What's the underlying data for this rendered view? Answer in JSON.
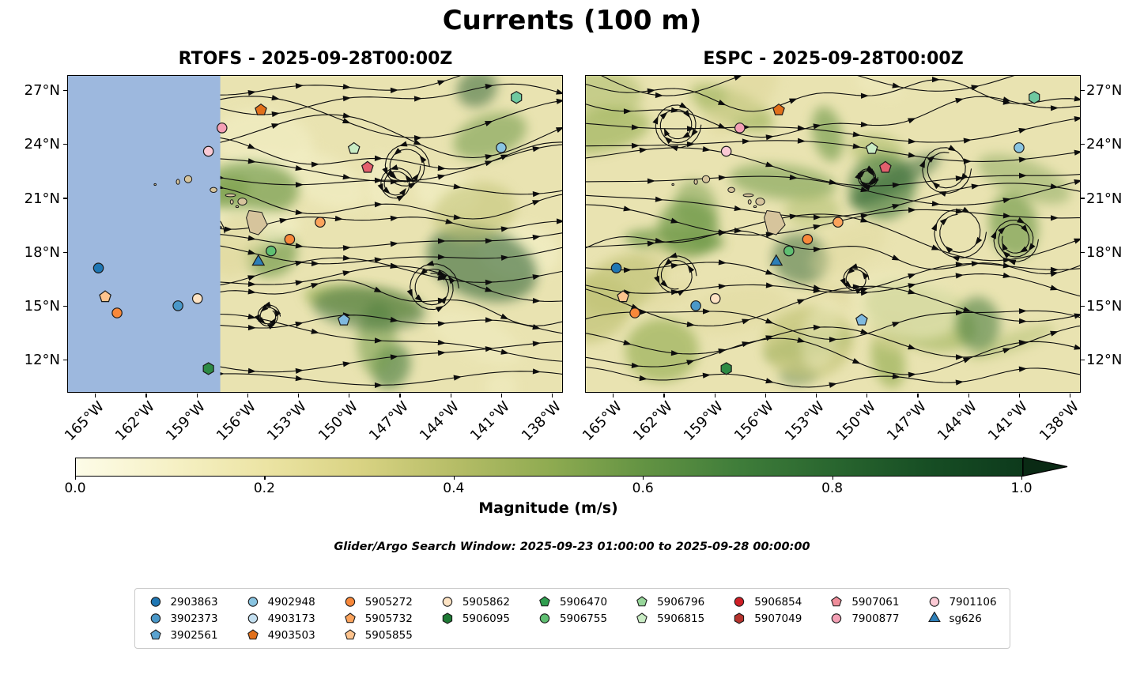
{
  "figure": {
    "title": "Currents (100 m)",
    "panels": [
      {
        "id": "rtofs",
        "title": "RTOFS - 2025-09-28T00:00Z"
      },
      {
        "id": "espc",
        "title": "ESPC - 2025-09-28T00:00Z"
      }
    ],
    "search_window": "Glider/Argo Search Window: 2025-09-23 01:00:00 to 2025-09-28 00:00:00",
    "colorbar": {
      "label": "Magnitude (m/s)",
      "tick_labels": [
        "0.0",
        "0.2",
        "0.4",
        "0.6",
        "0.8",
        "1.0"
      ],
      "gradient": [
        "#fdfce8",
        "#f6f1c6",
        "#ece4a4",
        "#d9d383",
        "#b6bd67",
        "#8fab51",
        "#639343",
        "#3f7d3a",
        "#29662f",
        "#174e24",
        "#0d3a1c"
      ],
      "arrow_color": "#0a2a14"
    },
    "colors": {
      "mask": "#9db8de",
      "field_base": "#e9e3b1",
      "island": "#d6c49c",
      "streamline": "#0d0d0d",
      "green_palette": [
        "#f2eec4",
        "#dfd89c",
        "#c2c478",
        "#9db35c",
        "#6f9a48",
        "#43793a",
        "#2a6030"
      ]
    },
    "axis": {
      "lat_tick_labels": [
        "27°N",
        "24°N",
        "21°N",
        "18°N",
        "15°N",
        "12°N"
      ],
      "lon_tick_labels": [
        "165°W",
        "162°W",
        "159°W",
        "156°W",
        "153°W",
        "150°W",
        "147°W",
        "144°W",
        "141°W",
        "138°W"
      ]
    },
    "legend_columns": [
      [
        {
          "id": "2903863",
          "shape": "circle",
          "color": "#1f77b4"
        },
        {
          "id": "3902373",
          "shape": "circle",
          "color": "#4a98c9"
        },
        {
          "id": "3902561",
          "shape": "pentagon",
          "color": "#5ba3d0"
        }
      ],
      [
        {
          "id": "4902948",
          "shape": "circle",
          "color": "#89c4e1"
        },
        {
          "id": "4903173",
          "shape": "circle",
          "color": "#c3dff0"
        },
        {
          "id": "4903503",
          "shape": "pentagon",
          "color": "#e1701b"
        }
      ],
      [
        {
          "id": "5905272",
          "shape": "circle",
          "color": "#f8883a"
        },
        {
          "id": "5905732",
          "shape": "pentagon",
          "color": "#fba35c"
        },
        {
          "id": "5905855",
          "shape": "pentagon",
          "color": "#fdc38d"
        }
      ],
      [
        {
          "id": "5905862",
          "shape": "circle",
          "color": "#fde3c3"
        },
        {
          "id": "5906095",
          "shape": "hexagon",
          "color": "#1e7a35"
        }
      ],
      [
        {
          "id": "5906470",
          "shape": "pentagon",
          "color": "#2f9e4f"
        },
        {
          "id": "5906755",
          "shape": "circle",
          "color": "#5fbf72"
        }
      ],
      [
        {
          "id": "5906796",
          "shape": "pentagon",
          "color": "#97d69a"
        },
        {
          "id": "5906815",
          "shape": "pentagon",
          "color": "#c9ecc4"
        }
      ],
      [
        {
          "id": "5906854",
          "shape": "circle",
          "color": "#cf1f26"
        },
        {
          "id": "5907049",
          "shape": "hexagon",
          "color": "#b5332d"
        }
      ],
      [
        {
          "id": "5907061",
          "shape": "pentagon",
          "color": "#ef8d9a"
        },
        {
          "id": "7900877",
          "shape": "circle",
          "color": "#f4a0b5"
        }
      ],
      [
        {
          "id": "7901106",
          "shape": "circle",
          "color": "#fbc9d4"
        },
        {
          "id": "sg626",
          "shape": "triangle",
          "color": "#2d7fb8"
        }
      ]
    ]
  },
  "chart_data": {
    "type": "map-streamplot-pair",
    "variable": "Ocean current magnitude and direction at 100 m depth",
    "models": [
      {
        "name": "RTOFS",
        "valid_time": "2025-09-28T00:00Z"
      },
      {
        "name": "ESPC",
        "valid_time": "2025-09-28T00:00Z"
      }
    ],
    "lon_axis_deg_west": {
      "ticks": [
        165,
        162,
        159,
        156,
        153,
        150,
        147,
        144,
        141,
        138
      ],
      "range": [
        166.6,
        137.4
      ]
    },
    "lat_axis_deg_north": {
      "ticks": [
        27,
        24,
        21,
        18,
        15,
        12
      ],
      "range": [
        10.2,
        27.8
      ]
    },
    "colorbar": {
      "label": "Magnitude (m/s)",
      "range": [
        0.0,
        1.0
      ],
      "ticks": [
        0.0,
        0.2,
        0.4,
        0.6,
        0.8,
        1.0
      ],
      "extend": "max"
    },
    "search_window": {
      "start": "2025-09-23 01:00:00",
      "end": "2025-09-28 00:00:00"
    },
    "rtofs_no_data_mask_west_of_deg_w": 157.6,
    "platform_ids": [
      "2903863",
      "3902373",
      "3902561",
      "4902948",
      "4903173",
      "4903503",
      "5905272",
      "5905732",
      "5905855",
      "5905862",
      "5906095",
      "5906470",
      "5906755",
      "5906796",
      "5906815",
      "5906854",
      "5907049",
      "5907061",
      "7900877",
      "7901106",
      "sg626"
    ],
    "markers": [
      {
        "shape": "circle",
        "color": "#1f77b4",
        "lon_w": 164.8,
        "lat_n": 17.1
      },
      {
        "shape": "pentagon",
        "color": "#fdc38d",
        "lon_w": 164.4,
        "lat_n": 15.5
      },
      {
        "shape": "circle",
        "color": "#f8883a",
        "lon_w": 163.7,
        "lat_n": 14.6
      },
      {
        "shape": "circle",
        "color": "#4a98c9",
        "lon_w": 160.1,
        "lat_n": 15.0
      },
      {
        "shape": "circle",
        "color": "#fde3c3",
        "lon_w": 158.95,
        "lat_n": 15.4
      },
      {
        "shape": "circle",
        "color": "#f4a0b5",
        "lon_w": 157.5,
        "lat_n": 24.9
      },
      {
        "shape": "circle",
        "color": "#fbc9d4",
        "lon_w": 158.3,
        "lat_n": 23.6
      },
      {
        "shape": "pentagon",
        "color": "#e1701b",
        "lon_w": 155.2,
        "lat_n": 25.9
      },
      {
        "shape": "pentagon",
        "color": "#c9ecc4",
        "lon_w": 149.7,
        "lat_n": 23.75
      },
      {
        "shape": "pentagon",
        "color": "#e3606d",
        "lon_w": 148.9,
        "lat_n": 22.7
      },
      {
        "shape": "circle",
        "color": "#89c4e1",
        "lon_w": 141.0,
        "lat_n": 23.8
      },
      {
        "shape": "hexagon",
        "color": "#6fc9a0",
        "lon_w": 140.1,
        "lat_n": 26.6
      },
      {
        "shape": "circle",
        "color": "#fba35c",
        "lon_w": 151.7,
        "lat_n": 19.65
      },
      {
        "shape": "circle",
        "color": "#f8883a",
        "lon_w": 153.5,
        "lat_n": 18.7
      },
      {
        "shape": "circle",
        "color": "#5fbf72",
        "lon_w": 154.6,
        "lat_n": 18.05
      },
      {
        "shape": "triangle",
        "color": "#2d7fb8",
        "lon_w": 155.35,
        "lat_n": 17.45
      },
      {
        "shape": "pentagon",
        "color": "#7fb9de",
        "lon_w": 150.3,
        "lat_n": 14.2
      },
      {
        "shape": "hexagon",
        "color": "#2d8b45",
        "lon_w": 158.3,
        "lat_n": 11.5
      }
    ],
    "islands": {
      "ellipses": [
        {
          "lon_w": 161.45,
          "lat_n": 21.75,
          "rx_deg": 0.06,
          "ry_deg": 0.05
        },
        {
          "lon_w": 160.1,
          "lat_n": 21.9,
          "rx_deg": 0.1,
          "ry_deg": 0.14
        },
        {
          "lon_w": 159.5,
          "lat_n": 22.05,
          "rx_deg": 0.22,
          "ry_deg": 0.2
        },
        {
          "lon_w": 158.0,
          "lat_n": 21.45,
          "rx_deg": 0.2,
          "ry_deg": 0.14
        },
        {
          "lon_w": 157.0,
          "lat_n": 21.15,
          "rx_deg": 0.3,
          "ry_deg": 0.08
        },
        {
          "lon_w": 156.92,
          "lat_n": 20.78,
          "rx_deg": 0.09,
          "ry_deg": 0.12
        },
        {
          "lon_w": 156.6,
          "lat_n": 20.52,
          "rx_deg": 0.08,
          "ry_deg": 0.05
        },
        {
          "lon_w": 156.3,
          "lat_n": 20.8,
          "rx_deg": 0.26,
          "ry_deg": 0.2
        }
      ],
      "big_island_polygon": [
        [
          155.9,
          20.3
        ],
        [
          155.15,
          20.2
        ],
        [
          154.82,
          19.5
        ],
        [
          155.35,
          18.95
        ],
        [
          155.85,
          19.1
        ],
        [
          156.06,
          19.9
        ]
      ]
    }
  }
}
